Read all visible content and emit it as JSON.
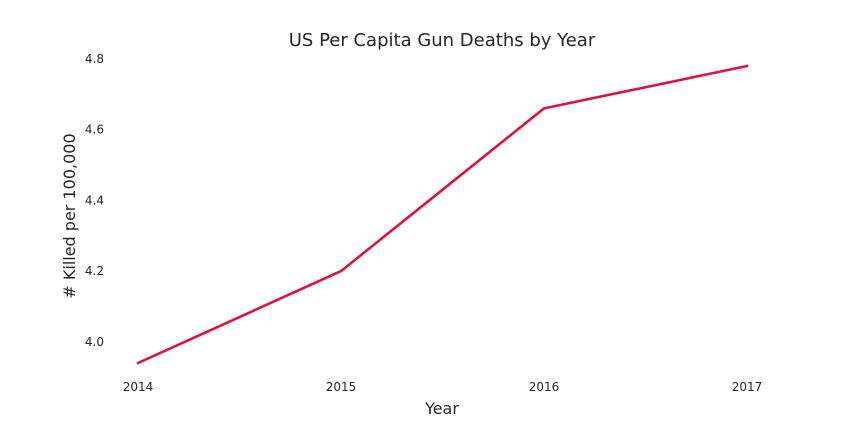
{
  "chart_data": {
    "type": "line",
    "title": "US Per Capita Gun Deaths by Year",
    "xlabel": "Year",
    "ylabel": "# Killed per 100,000",
    "x": [
      2014,
      2015,
      2016,
      2017
    ],
    "xticks": [
      "2014",
      "2015",
      "2016",
      "2017"
    ],
    "yticks": [
      "4.0",
      "4.2",
      "4.4",
      "4.6",
      "4.8"
    ],
    "xlim": [
      2014,
      2017
    ],
    "ylim": [
      3.94,
      4.78
    ],
    "grid": false,
    "series": [
      {
        "values": [
          3.94,
          4.2,
          4.66,
          4.78
        ],
        "color": "#dc143c"
      }
    ]
  }
}
